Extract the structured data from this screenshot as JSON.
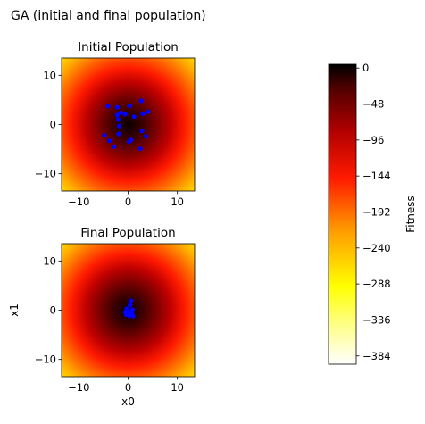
{
  "figure": {
    "suptitle": "GA (initial and final population)"
  },
  "chart_data": [
    {
      "type": "heatmap+scatter",
      "title": "Initial Population",
      "xlim": [
        -13.5,
        13.5
      ],
      "ylim": [
        -13.5,
        13.5
      ],
      "xticks": [
        -10,
        0,
        10
      ],
      "yticks": [
        -10,
        0,
        10
      ],
      "xlabel": "",
      "ylabel": "",
      "show_xticklabels": true,
      "show_yticklabels": true,
      "fitness_function": "-(x0^2 + x1^2)",
      "points": [
        {
          "x": 2.7,
          "y": 4.8
        },
        {
          "x": -4.1,
          "y": 3.7
        },
        {
          "x": -2.2,
          "y": 3.5
        },
        {
          "x": 0.3,
          "y": 3.8
        },
        {
          "x": 3.0,
          "y": 2.2
        },
        {
          "x": 4.1,
          "y": 2.6
        },
        {
          "x": -2.2,
          "y": 1.9
        },
        {
          "x": -1.5,
          "y": 2.4
        },
        {
          "x": -0.6,
          "y": 2.1
        },
        {
          "x": 1.2,
          "y": 1.6
        },
        {
          "x": -2.0,
          "y": 1.0
        },
        {
          "x": -1.8,
          "y": -0.3
        },
        {
          "x": 2.8,
          "y": -1.3
        },
        {
          "x": -4.8,
          "y": -2.2
        },
        {
          "x": -1.9,
          "y": -1.9
        },
        {
          "x": 0.6,
          "y": -3.1
        },
        {
          "x": 0.2,
          "y": -3.5
        },
        {
          "x": 3.6,
          "y": -2.4
        },
        {
          "x": -3.8,
          "y": -3.3
        },
        {
          "x": -2.9,
          "y": -4.5
        },
        {
          "x": 2.5,
          "y": -4.9
        }
      ]
    },
    {
      "type": "heatmap+scatter",
      "title": "Final Population",
      "xlim": [
        -13.5,
        13.5
      ],
      "ylim": [
        -13.5,
        13.5
      ],
      "xticks": [
        -10,
        0,
        10
      ],
      "yticks": [
        -10,
        0,
        10
      ],
      "xlabel": "x0",
      "ylabel": "x1",
      "show_xticklabels": true,
      "show_yticklabels": true,
      "fitness_function": "-(x0^2 + x1^2)",
      "points": [
        {
          "x": 0.6,
          "y": 1.9
        },
        {
          "x": 0.4,
          "y": 1.0
        },
        {
          "x": -0.3,
          "y": 0.3
        },
        {
          "x": 0.1,
          "y": -0.2
        },
        {
          "x": 0.5,
          "y": -0.5
        },
        {
          "x": -0.6,
          "y": -0.4
        },
        {
          "x": 0.8,
          "y": -0.8
        },
        {
          "x": 0.2,
          "y": -1.1
        },
        {
          "x": -0.1,
          "y": -0.6
        },
        {
          "x": 0.9,
          "y": 0.1
        },
        {
          "x": -0.4,
          "y": -0.9
        },
        {
          "x": 1.0,
          "y": -1.2
        }
      ]
    },
    {
      "type": "colorbar",
      "label": "Fitness",
      "colormap": "hot",
      "range": [
        -395,
        5
      ],
      "ticks": [
        0,
        -48,
        -96,
        -144,
        -192,
        -240,
        -288,
        -336,
        -384
      ],
      "tick_labels": [
        "0",
        "−48",
        "−96",
        "−144",
        "−192",
        "−240",
        "−288",
        "−336",
        "−384"
      ]
    }
  ],
  "colors": {
    "point": "#0000ff",
    "axes": "#000000"
  }
}
